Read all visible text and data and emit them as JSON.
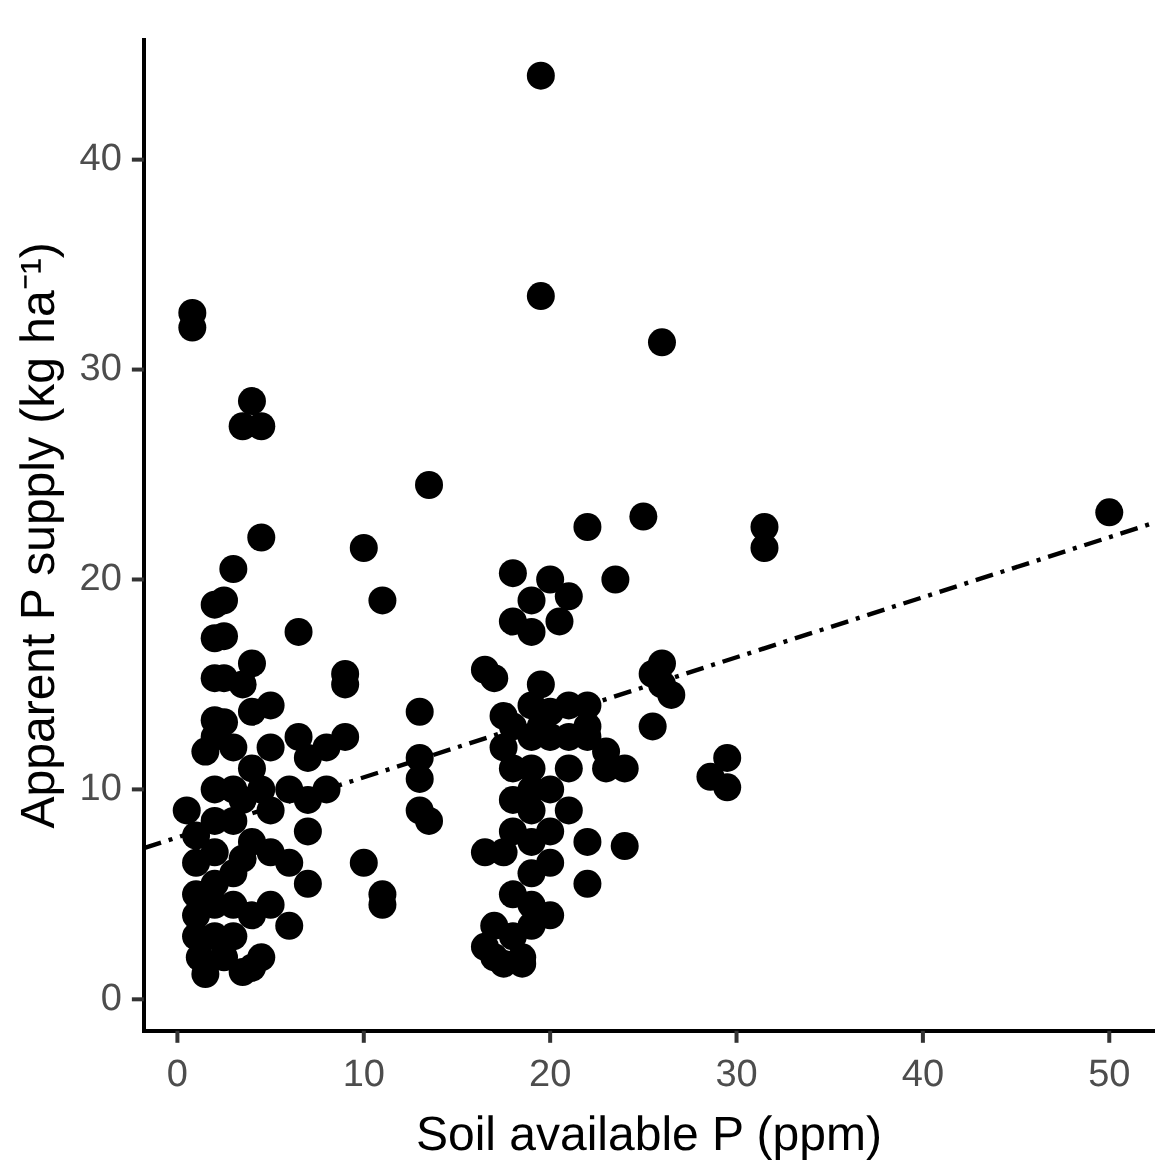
{
  "chart_data": {
    "type": "scatter",
    "xlabel": "Soil available P (ppm)",
    "ylabel": "Apparent P supply (kg ha⁻¹)",
    "xlim": [
      -1.8,
      52.4
    ],
    "xticks": [
      0,
      10,
      20,
      30,
      40,
      50
    ],
    "ylim": [
      -1.5,
      45.7
    ],
    "yticks": [
      0,
      10,
      20,
      30,
      40
    ],
    "grid": false,
    "legend": false,
    "marker": "circle",
    "series": [
      {
        "color": "#000000",
        "x": [
          0.8,
          0.8,
          1.5,
          0.5,
          1,
          1,
          1,
          1,
          1,
          1.2,
          1.5,
          2,
          2,
          2,
          2,
          2,
          2,
          2,
          2,
          2,
          2.5,
          2.5,
          2.5,
          2.5,
          2,
          2,
          2.5,
          3,
          3,
          3,
          3,
          3,
          3,
          3,
          3.5,
          3.5,
          3.5,
          3.5,
          4,
          4,
          4,
          4,
          4,
          4,
          4,
          4.5,
          4.5,
          4.5,
          4.5,
          3.5,
          5,
          5,
          5,
          5,
          5,
          6,
          6,
          6,
          6.5,
          6.5,
          7,
          7,
          7,
          7,
          8,
          8,
          9,
          9,
          9,
          10,
          10,
          11,
          11,
          11,
          13.5,
          13,
          13,
          13,
          13,
          13.5,
          16.5,
          17,
          16.5,
          16.5,
          17,
          17,
          17.5,
          17.5,
          17.5,
          17.5,
          18,
          18,
          18,
          18,
          18,
          18,
          18,
          18,
          18.5,
          18.5,
          19,
          19,
          19,
          19,
          19,
          19,
          19,
          19,
          19,
          19,
          19,
          19.5,
          19.5,
          19.5,
          19.5,
          20,
          20,
          20,
          20,
          20,
          20,
          20,
          20.5,
          21,
          21,
          21,
          21,
          21,
          22,
          22,
          22,
          22,
          22,
          22,
          23,
          23,
          23.5,
          24,
          24,
          25,
          25.5,
          25.5,
          26,
          26,
          26,
          26.5,
          28.6,
          29.5,
          29.5,
          31.5,
          31.5,
          50
        ],
        "values": [
          32.7,
          32.0,
          11.8,
          9.0,
          7.8,
          6.5,
          5,
          4,
          3,
          2,
          1.2,
          5.5,
          7,
          8.5,
          10,
          12.5,
          13.3,
          15.3,
          17.2,
          18.8,
          19,
          17.3,
          15.3,
          13.2,
          4.5,
          3,
          2,
          20.5,
          12,
          10,
          8.5,
          6,
          4.5,
          3,
          27.3,
          15,
          9.5,
          6.7,
          28.5,
          16,
          13.7,
          11,
          7.5,
          4,
          1.5,
          22,
          27.3,
          10,
          2,
          1.3,
          14,
          12,
          9,
          7,
          4.5,
          10,
          3.5,
          6.5,
          17.5,
          12.5,
          11.5,
          9.5,
          8,
          5.5,
          12,
          10,
          15.5,
          15,
          12.5,
          21.5,
          6.5,
          19,
          5,
          4.5,
          24.5,
          13.7,
          11.5,
          10.5,
          9,
          8.5,
          15.7,
          15.3,
          7,
          2.5,
          3.5,
          2,
          1.7,
          13.5,
          12,
          7,
          18,
          20.3,
          13,
          11,
          9.5,
          8,
          5,
          3,
          2,
          1.7,
          19,
          17.5,
          14,
          12.5,
          11,
          10,
          9,
          7.5,
          6,
          4.5,
          3.5,
          44,
          33.5,
          15,
          13,
          20,
          13.7,
          12.5,
          10,
          8,
          6.5,
          4,
          18,
          19.2,
          14,
          12.5,
          11,
          9,
          22.5,
          14,
          13,
          12.5,
          7.5,
          5.5,
          11,
          11.8,
          20,
          11,
          7.3,
          23,
          15.5,
          13,
          31.3,
          16,
          15,
          14.5,
          10.6,
          11.5,
          10.1,
          22.5,
          21.5,
          23.2
        ]
      },
      {
        "type": "line",
        "color": "#000000",
        "line_style": "dashed",
        "marker": "none",
        "x": [
          -1.8,
          52.4
        ],
        "values": [
          7.2,
          22.7
        ]
      }
    ]
  }
}
